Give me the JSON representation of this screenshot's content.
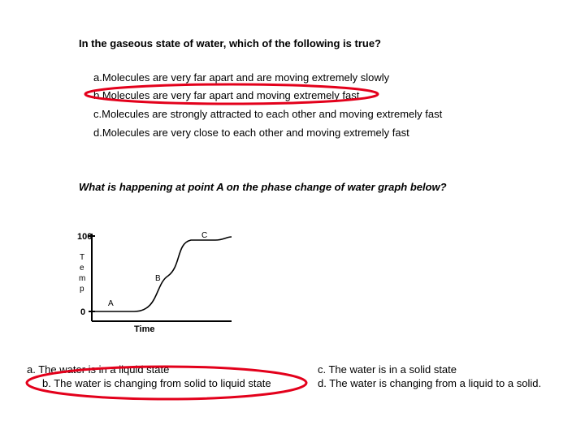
{
  "question1": {
    "text": "In the gaseous state of water, which of the following is true?",
    "options": [
      "a.Molecules are very far apart and are moving extremely slowly",
      "b.Molecules are very far apart and moving extremely fast",
      "c.Molecules are strongly attracted to each other and moving extremely fast",
      "d.Molecules are very close to each other and moving extremely fast"
    ],
    "circled_option_index": 1
  },
  "question2": {
    "text": "What is happening at point A on the phase change of water graph below?",
    "answers": [
      "a.  The water is in a liquid state",
      "b.  The water is changing from solid to liquid state",
      "c. The water is in a solid state",
      "d.  The water is changing from a liquid to a solid."
    ],
    "circled_answer_index": 1
  },
  "graph": {
    "y_axis_label": "T e m p",
    "y_axis_letters": [
      "T",
      "e",
      "m",
      "p"
    ],
    "x_axis_label": "Time",
    "y_tick_top": "100",
    "y_tick_bottom": "0",
    "point_labels": [
      "A",
      "B",
      "C"
    ]
  },
  "colors": {
    "annotation": "#e3001b"
  }
}
